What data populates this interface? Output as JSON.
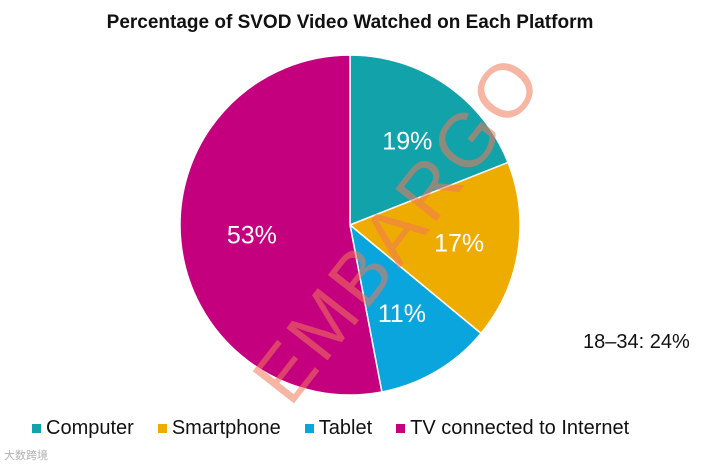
{
  "chart_data": {
    "type": "pie",
    "title": "Percentage of SVOD Video Watched on Each Platform",
    "slices": [
      {
        "name": "Computer",
        "value": 19,
        "label": "19%",
        "color": "#12a2a9"
      },
      {
        "name": "Smartphone",
        "value": 17,
        "label": "17%",
        "color": "#eeab00"
      },
      {
        "name": "Tablet",
        "value": 11,
        "label": "11%",
        "color": "#0aa5dc"
      },
      {
        "name": "TV connected to Internet",
        "value": 53,
        "label": "53%",
        "color": "#c4007f"
      }
    ],
    "start_angle": "12 o'clock",
    "direction": "clockwise",
    "legend_position": "bottom",
    "annotation": "18–34: 24%"
  },
  "watermark": "EMBARGO",
  "footer_mark": "大数跨境"
}
